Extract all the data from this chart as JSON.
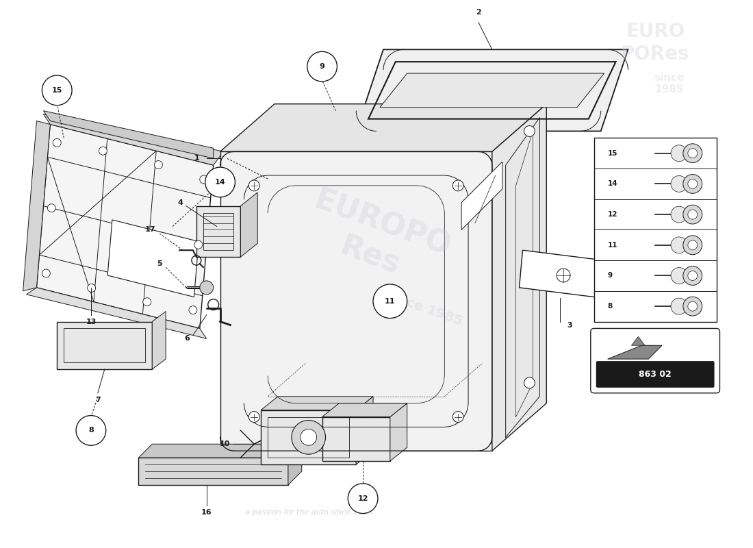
{
  "bg_color": "#ffffff",
  "line_color": "#1a1a1a",
  "fastener_list": [
    15,
    14,
    12,
    11,
    9,
    8
  ],
  "diagram_code": "863 02",
  "watermark_color": "#c8c8d8"
}
